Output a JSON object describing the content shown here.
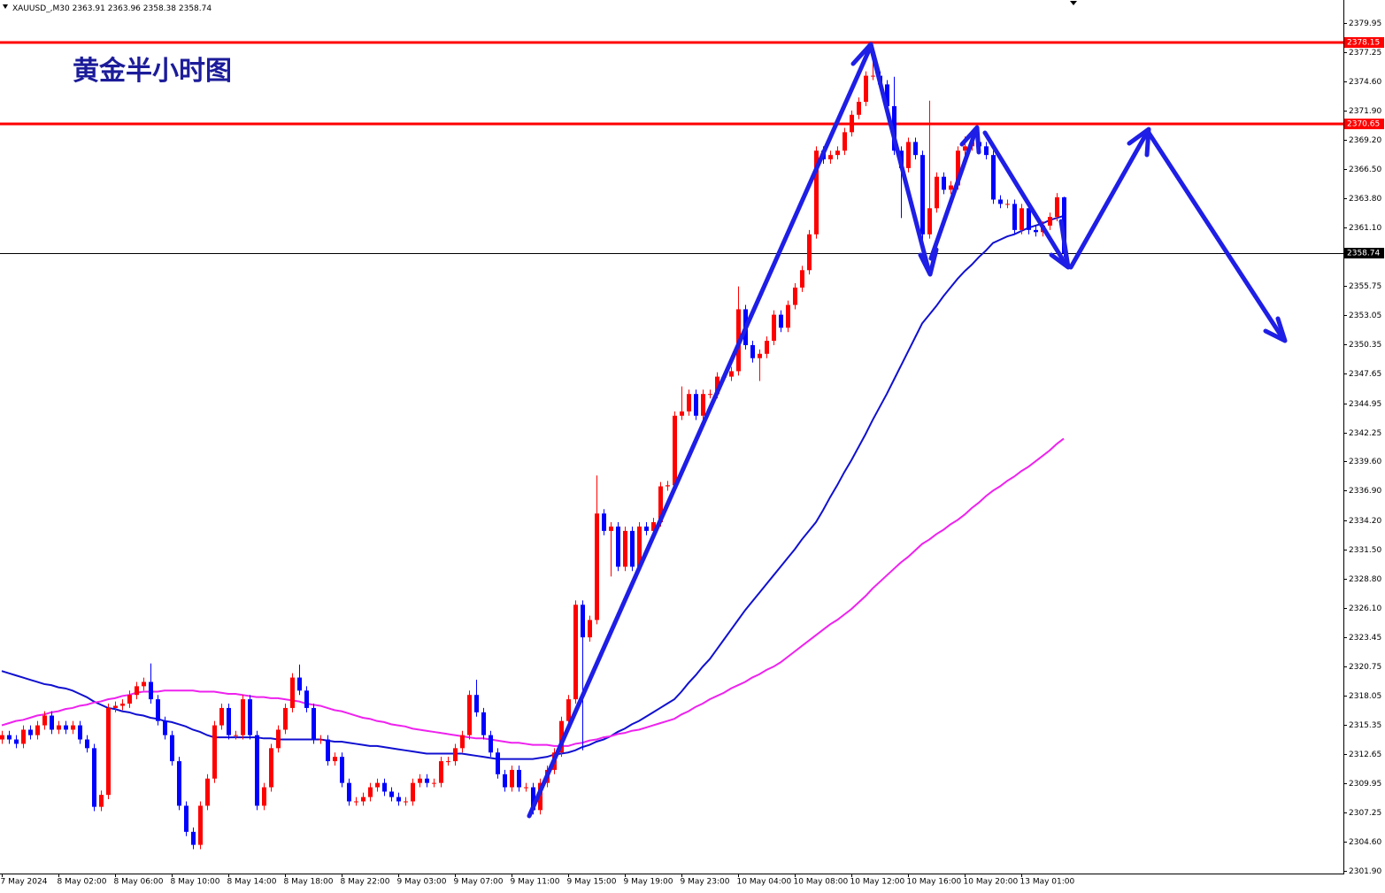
{
  "chart_data": {
    "type": "candlestick",
    "symbol": "XAUUSD_,M30",
    "title": "黄金半小时图",
    "up_color": "#ff0000",
    "down_color": "#0000ff",
    "categories": [
      "7 May 2024",
      null,
      null,
      null,
      null,
      null,
      null,
      null,
      "8 May 02:00",
      null,
      null,
      null,
      null,
      null,
      null,
      null,
      "8 May 06:00",
      null,
      null,
      null,
      null,
      null,
      null,
      null,
      "8 May 10:00",
      null,
      null,
      null,
      null,
      null,
      null,
      null,
      "8 May 14:00",
      null,
      null,
      null,
      null,
      null,
      null,
      null,
      "8 May 18:00",
      null,
      null,
      null,
      null,
      null,
      null,
      null,
      "8 May 22:00",
      null,
      null,
      null,
      null,
      null,
      null,
      null,
      "9 May 03:00",
      null,
      null,
      null,
      null,
      null,
      null,
      null,
      "9 May 07:00",
      null,
      null,
      null,
      null,
      null,
      null,
      null,
      "9 May 11:00",
      null,
      null,
      null,
      null,
      null,
      null,
      null,
      "9 May 15:00",
      null,
      null,
      null,
      null,
      null,
      null,
      null,
      "9 May 19:00",
      null,
      null,
      null,
      null,
      null,
      null,
      null,
      "9 May 23:00",
      null,
      null,
      null,
      null,
      null,
      null,
      null,
      "10 May 04:00",
      null,
      null,
      null,
      null,
      null,
      null,
      null,
      "10 May 08:00",
      null,
      null,
      null,
      null,
      null,
      null,
      null,
      "10 May 12:00",
      null,
      null,
      null,
      null,
      null,
      null,
      null,
      "10 May 16:00",
      null,
      null,
      null,
      null,
      null,
      null,
      null,
      "10 May 20:00",
      null,
      null,
      null,
      null,
      null,
      null,
      null,
      "13 May 01:00",
      null,
      null,
      null,
      null,
      null,
      null
    ],
    "open": [
      2314.0,
      2314.4,
      2314.0,
      2313.6,
      2314.9,
      2314.4,
      2315.3,
      2316.2,
      2314.9,
      2315.3,
      2314.9,
      2315.3,
      2314.0,
      2313.2,
      2307.8,
      2308.9,
      2316.9,
      2317.1,
      2317.3,
      2318.1,
      2318.9,
      2319.3,
      2317.7,
      2315.7,
      2314.4,
      2312.0,
      2307.9,
      2305.5,
      2304.3,
      2307.9,
      2310.4,
      2315.3,
      2316.9,
      2314.4,
      2314.4,
      2317.7,
      2314.4,
      2307.9,
      2309.6,
      2313.2,
      2314.9,
      2316.9,
      2319.7,
      2318.5,
      2316.9,
      2314.0,
      2314.0,
      2312.0,
      2312.4,
      2310.0,
      2308.3,
      2308.3,
      2308.7,
      2309.6,
      2310.0,
      2309.2,
      2308.7,
      2308.3,
      2308.3,
      2310.0,
      2310.4,
      2310.0,
      2310.0,
      2312.0,
      2312.0,
      2313.2,
      2314.4,
      2318.1,
      2316.5,
      2314.4,
      2312.8,
      2310.8,
      2309.6,
      2311.2,
      2309.6,
      2309.6,
      2307.5,
      2310.0,
      2311.2,
      2312.8,
      2315.7,
      2317.7,
      2326.4,
      2323.4,
      2325.0,
      2334.8,
      2333.2,
      2333.6,
      2329.9,
      2333.2,
      2329.9,
      2333.6,
      2333.2,
      2334.0,
      2337.3,
      2337.4,
      2343.8,
      2344.2,
      2345.8,
      2343.8,
      2345.8,
      2345.8,
      2347.4,
      2347.4,
      2347.9,
      2353.6,
      2350.3,
      2349.1,
      2349.5,
      2350.7,
      2353.1,
      2351.9,
      2354.0,
      2355.6,
      2357.2,
      2360.5,
      2368.2,
      2367.4,
      2367.8,
      2368.2,
      2369.9,
      2371.5,
      2372.7,
      2375.1,
      2375.1,
      2374.3,
      2372.3,
      2368.2,
      2366.6,
      2369.0,
      2367.8,
      2360.5,
      2362.9,
      2365.8,
      2364.6,
      2365.0,
      2368.2,
      2368.6,
      2369.0,
      2368.6,
      2367.8,
      2363.7,
      2363.3,
      2363.3,
      2360.9,
      2362.9,
      2360.9,
      2360.7,
      2361.3,
      2362.1,
      2363.91
    ],
    "high": [
      2314.8,
      2314.8,
      2314.4,
      2315.3,
      2315.3,
      2315.7,
      2316.6,
      2316.6,
      2315.7,
      2315.7,
      2315.7,
      2315.7,
      2314.4,
      2313.6,
      2309.3,
      2317.3,
      2317.5,
      2317.7,
      2318.5,
      2319.3,
      2319.7,
      2321.0,
      2318.1,
      2316.1,
      2314.8,
      2312.4,
      2308.3,
      2305.9,
      2308.3,
      2310.8,
      2315.7,
      2317.3,
      2317.3,
      2314.8,
      2318.1,
      2318.1,
      2314.8,
      2310.0,
      2313.6,
      2315.3,
      2317.3,
      2320.1,
      2320.9,
      2318.9,
      2317.3,
      2314.4,
      2314.4,
      2312.8,
      2312.8,
      2310.4,
      2308.7,
      2309.1,
      2310.0,
      2310.4,
      2310.4,
      2309.6,
      2309.1,
      2308.7,
      2310.4,
      2310.8,
      2310.8,
      2310.4,
      2312.4,
      2312.4,
      2313.6,
      2314.8,
      2318.5,
      2319.5,
      2316.9,
      2314.8,
      2313.2,
      2311.2,
      2311.6,
      2311.6,
      2310.0,
      2310.0,
      2310.4,
      2311.6,
      2313.2,
      2316.1,
      2318.1,
      2326.8,
      2326.8,
      2325.4,
      2338.3,
      2335.2,
      2334.0,
      2334.0,
      2333.6,
      2333.6,
      2334.0,
      2334.0,
      2334.4,
      2337.7,
      2337.8,
      2344.2,
      2346.5,
      2346.2,
      2346.2,
      2346.2,
      2346.2,
      2347.8,
      2347.8,
      2348.3,
      2355.7,
      2354.0,
      2350.7,
      2349.9,
      2351.1,
      2353.5,
      2353.5,
      2354.4,
      2356.0,
      2357.6,
      2360.9,
      2368.6,
      2368.6,
      2368.2,
      2368.6,
      2370.3,
      2371.9,
      2373.1,
      2375.5,
      2377.9,
      2375.5,
      2374.7,
      2375.0,
      2368.6,
      2369.4,
      2369.4,
      2368.2,
      2372.8,
      2366.2,
      2366.2,
      2365.4,
      2368.6,
      2369.5,
      2369.4,
      2369.4,
      2369.0,
      2368.2,
      2364.1,
      2363.7,
      2363.7,
      2363.3,
      2363.3,
      2361.3,
      2361.7,
      2362.5,
      2364.3,
      2363.96
    ],
    "low": [
      2313.6,
      2313.6,
      2313.2,
      2313.2,
      2314.0,
      2314.0,
      2314.9,
      2314.5,
      2314.5,
      2314.5,
      2314.5,
      2313.6,
      2312.8,
      2307.4,
      2307.4,
      2308.5,
      2316.5,
      2316.7,
      2316.9,
      2317.7,
      2318.5,
      2317.3,
      2315.3,
      2314.0,
      2311.6,
      2307.5,
      2305.1,
      2303.9,
      2303.9,
      2307.5,
      2310.0,
      2314.9,
      2314.0,
      2314.0,
      2314.0,
      2314.0,
      2307.5,
      2307.5,
      2309.2,
      2312.8,
      2314.5,
      2316.5,
      2318.1,
      2316.5,
      2313.6,
      2313.6,
      2311.6,
      2311.6,
      2309.6,
      2307.9,
      2307.9,
      2307.9,
      2308.3,
      2309.2,
      2308.8,
      2308.3,
      2307.9,
      2307.9,
      2307.9,
      2309.6,
      2309.6,
      2309.6,
      2309.6,
      2311.6,
      2311.6,
      2312.8,
      2314.0,
      2316.1,
      2314.0,
      2312.4,
      2310.4,
      2309.2,
      2309.2,
      2309.2,
      2309.2,
      2307.1,
      2307.1,
      2309.6,
      2310.8,
      2312.4,
      2315.3,
      2317.3,
      2313.0,
      2323.0,
      2324.6,
      2332.8,
      2329.0,
      2329.5,
      2329.5,
      2329.5,
      2329.5,
      2332.8,
      2332.8,
      2333.6,
      2336.9,
      2337.0,
      2343.4,
      2343.8,
      2343.4,
      2343.4,
      2345.4,
      2345.4,
      2347.0,
      2347.0,
      2347.5,
      2349.9,
      2348.7,
      2347.0,
      2349.1,
      2350.3,
      2351.5,
      2351.5,
      2353.6,
      2355.2,
      2356.8,
      2360.1,
      2367.0,
      2367.0,
      2367.4,
      2367.8,
      2369.5,
      2371.1,
      2372.3,
      2374.7,
      2373.9,
      2371.9,
      2367.8,
      2362.0,
      2366.2,
      2367.4,
      2359.5,
      2360.1,
      2362.5,
      2364.2,
      2364.2,
      2364.6,
      2367.8,
      2368.2,
      2368.2,
      2367.4,
      2363.3,
      2362.9,
      2362.9,
      2360.5,
      2360.5,
      2360.5,
      2360.3,
      2360.3,
      2360.9,
      2361.7,
      2358.38
    ],
    "close": [
      2314.4,
      2314.0,
      2313.6,
      2314.9,
      2314.4,
      2315.3,
      2316.2,
      2314.9,
      2315.3,
      2314.9,
      2315.3,
      2314.0,
      2313.2,
      2307.8,
      2308.9,
      2316.9,
      2317.1,
      2317.3,
      2318.1,
      2318.9,
      2319.3,
      2317.7,
      2315.7,
      2314.4,
      2312.0,
      2307.9,
      2305.5,
      2304.3,
      2307.9,
      2310.4,
      2315.3,
      2316.9,
      2314.4,
      2314.4,
      2317.7,
      2314.4,
      2307.9,
      2309.6,
      2313.2,
      2314.9,
      2316.9,
      2319.7,
      2318.5,
      2316.9,
      2314.0,
      2314.0,
      2312.0,
      2312.4,
      2310.0,
      2308.3,
      2308.3,
      2308.7,
      2309.6,
      2310.0,
      2309.2,
      2308.7,
      2308.3,
      2308.3,
      2310.0,
      2310.4,
      2310.0,
      2310.0,
      2312.0,
      2312.0,
      2313.2,
      2314.4,
      2318.1,
      2316.5,
      2314.4,
      2312.8,
      2310.8,
      2309.6,
      2311.2,
      2309.6,
      2309.6,
      2307.5,
      2310.0,
      2311.2,
      2312.8,
      2315.7,
      2317.7,
      2326.4,
      2323.4,
      2325.0,
      2334.8,
      2333.2,
      2333.6,
      2329.9,
      2333.2,
      2329.9,
      2333.6,
      2333.2,
      2334.0,
      2337.3,
      2337.4,
      2343.8,
      2344.2,
      2345.8,
      2343.8,
      2345.8,
      2345.8,
      2347.4,
      2347.4,
      2347.9,
      2353.6,
      2350.3,
      2349.1,
      2349.5,
      2350.7,
      2353.1,
      2351.9,
      2354.0,
      2355.6,
      2357.2,
      2360.5,
      2368.2,
      2367.4,
      2367.8,
      2368.2,
      2369.9,
      2371.5,
      2372.7,
      2375.1,
      2375.1,
      2374.3,
      2372.3,
      2368.2,
      2366.6,
      2369.0,
      2367.8,
      2360.5,
      2362.9,
      2365.8,
      2364.6,
      2365.0,
      2368.2,
      2368.6,
      2369.0,
      2368.6,
      2367.8,
      2363.7,
      2363.3,
      2363.3,
      2360.9,
      2362.9,
      2360.9,
      2360.7,
      2361.3,
      2362.1,
      2363.91,
      2358.74
    ],
    "overlays": [
      {
        "color": "#1010d0",
        "values": [
          2320.3,
          2320.1,
          2319.9,
          2319.7,
          2319.5,
          2319.3,
          2319.1,
          2319.0,
          2318.8,
          2318.7,
          2318.5,
          2318.2,
          2317.9,
          2317.5,
          2317.2,
          2316.9,
          2316.8,
          2316.6,
          2316.5,
          2316.3,
          2316.2,
          2316.0,
          2315.9,
          2315.7,
          2315.6,
          2315.4,
          2315.2,
          2314.9,
          2314.7,
          2314.4,
          2314.2,
          2314.2,
          2314.2,
          2314.2,
          2314.2,
          2314.2,
          2314.2,
          2314.1,
          2314.1,
          2314.0,
          2314.0,
          2314.0,
          2314.0,
          2314.0,
          2314.0,
          2314.0,
          2313.9,
          2313.8,
          2313.8,
          2313.7,
          2313.6,
          2313.5,
          2313.4,
          2313.4,
          2313.3,
          2313.2,
          2313.1,
          2313.0,
          2312.9,
          2312.8,
          2312.7,
          2312.7,
          2312.7,
          2312.7,
          2312.7,
          2312.7,
          2312.6,
          2312.5,
          2312.4,
          2312.3,
          2312.2,
          2312.2,
          2312.2,
          2312.2,
          2312.2,
          2312.2,
          2312.3,
          2312.4,
          2312.6,
          2312.7,
          2312.8,
          2313.0,
          2313.3,
          2313.5,
          2313.8,
          2314.0,
          2314.3,
          2314.7,
          2315.0,
          2315.4,
          2315.7,
          2316.1,
          2316.5,
          2316.9,
          2317.3,
          2317.7,
          2318.4,
          2319.2,
          2319.9,
          2320.7,
          2321.4,
          2322.3,
          2323.2,
          2324.1,
          2325.0,
          2325.9,
          2326.7,
          2327.5,
          2328.3,
          2329.1,
          2329.9,
          2330.7,
          2331.5,
          2332.4,
          2333.2,
          2334.0,
          2335.1,
          2336.3,
          2337.4,
          2338.6,
          2339.7,
          2340.9,
          2342.1,
          2343.4,
          2344.6,
          2345.8,
          2347.1,
          2348.4,
          2349.7,
          2351.0,
          2352.3,
          2353.1,
          2353.9,
          2354.8,
          2355.6,
          2356.4,
          2357.1,
          2357.7,
          2358.4,
          2359.0,
          2359.7,
          2360.0,
          2360.3,
          2360.5,
          2360.8,
          2361.1,
          2361.3,
          2361.5,
          2361.8,
          2362.0,
          2362.2
        ]
      },
      {
        "color": "#ee22ee",
        "values": [
          2315.3,
          2315.5,
          2315.7,
          2315.8,
          2316.0,
          2316.2,
          2316.3,
          2316.5,
          2316.6,
          2316.8,
          2316.9,
          2317.1,
          2317.2,
          2317.4,
          2317.5,
          2317.7,
          2317.8,
          2318.0,
          2318.1,
          2318.3,
          2318.4,
          2318.4,
          2318.4,
          2318.5,
          2318.5,
          2318.5,
          2318.5,
          2318.5,
          2318.4,
          2318.4,
          2318.4,
          2318.3,
          2318.2,
          2318.2,
          2318.1,
          2318.0,
          2317.9,
          2317.9,
          2317.8,
          2317.8,
          2317.7,
          2317.6,
          2317.5,
          2317.3,
          2317.2,
          2317.1,
          2316.9,
          2316.7,
          2316.6,
          2316.4,
          2316.2,
          2316.0,
          2315.9,
          2315.7,
          2315.6,
          2315.4,
          2315.3,
          2315.2,
          2315.0,
          2314.9,
          2314.8,
          2314.7,
          2314.6,
          2314.5,
          2314.4,
          2314.3,
          2314.2,
          2314.1,
          2314.1,
          2314.0,
          2313.9,
          2313.8,
          2313.7,
          2313.7,
          2313.6,
          2313.5,
          2313.5,
          2313.5,
          2313.4,
          2313.4,
          2313.4,
          2313.6,
          2313.7,
          2313.9,
          2314.0,
          2314.2,
          2314.3,
          2314.5,
          2314.6,
          2314.8,
          2314.9,
          2315.1,
          2315.3,
          2315.5,
          2315.7,
          2315.9,
          2316.3,
          2316.6,
          2317.0,
          2317.3,
          2317.7,
          2318.0,
          2318.3,
          2318.7,
          2319.0,
          2319.3,
          2319.7,
          2320.0,
          2320.4,
          2320.7,
          2321.1,
          2321.6,
          2322.1,
          2322.6,
          2323.1,
          2323.6,
          2324.1,
          2324.6,
          2325.0,
          2325.5,
          2326.0,
          2326.6,
          2327.2,
          2327.9,
          2328.5,
          2329.1,
          2329.7,
          2330.3,
          2330.8,
          2331.4,
          2332.0,
          2332.4,
          2332.9,
          2333.3,
          2333.8,
          2334.2,
          2334.7,
          2335.3,
          2335.8,
          2336.4,
          2336.9,
          2337.3,
          2337.8,
          2338.2,
          2338.7,
          2339.1,
          2339.6,
          2340.1,
          2340.6,
          2341.2,
          2341.7
        ]
      }
    ],
    "hlines": [
      {
        "value": 2378.15,
        "color": "#ff0000"
      },
      {
        "value": 2370.65,
        "color": "#ff0000"
      },
      {
        "value": 2358.74,
        "color": "#000000"
      }
    ],
    "ylim": [
      2301.66,
      2382.07
    ],
    "yticks": [
      2379.95,
      2377.25,
      {
        "value": 2374.6,
        "label": "2374.60"
      },
      {
        "value": 2371.9,
        "label": "2371.90"
      },
      {
        "value": 2369.2,
        "label": "2369.20"
      },
      {
        "value": 2366.5,
        "label": "2366.50"
      },
      {
        "value": 2363.8,
        "label": "2363.80"
      },
      {
        "value": 2361.1,
        "label": "2361.10"
      },
      2355.75,
      2353.05,
      2350.35,
      2347.65,
      2344.95,
      2342.25,
      {
        "value": 2339.6,
        "label": "2339.60"
      },
      {
        "value": 2336.9,
        "label": "2336.90"
      },
      {
        "value": 2334.2,
        "label": "2334.20"
      },
      {
        "value": 2331.5,
        "label": "2331.50"
      },
      {
        "value": 2328.8,
        "label": "2328.80"
      },
      {
        "value": 2326.1,
        "label": "2326.10"
      },
      2323.45,
      2320.75,
      2318.05,
      2315.35,
      2312.65,
      2309.95,
      2307.25,
      {
        "value": 2304.6,
        "label": "2304.60"
      },
      {
        "value": 2301.9,
        "label": "2301.90"
      }
    ]
  }
}
